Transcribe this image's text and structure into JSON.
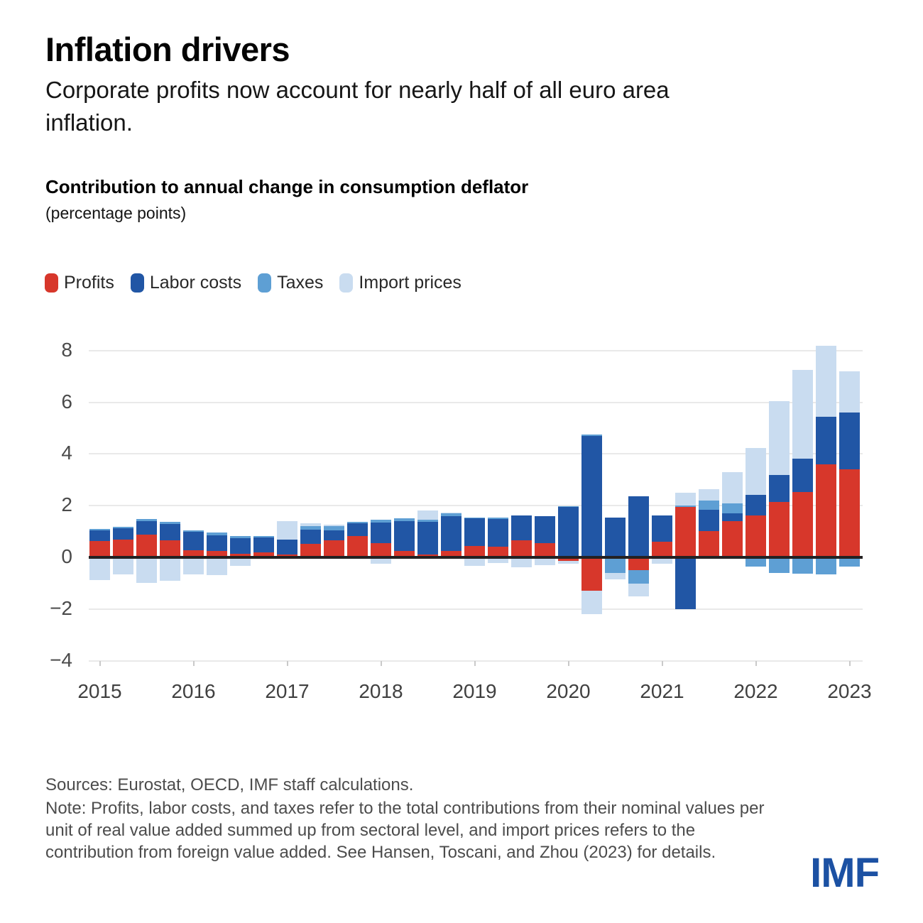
{
  "page": {
    "title": "Inflation drivers",
    "subtitle": "Corporate profits now account for nearly half of all euro area inflation."
  },
  "chart": {
    "heading": "Contribution to annual change in consumption deflator",
    "units": "(percentage points)"
  },
  "legend": {
    "items": [
      {
        "label": "Profits",
        "color": "#d7372b"
      },
      {
        "label": "Labor costs",
        "color": "#2156a5"
      },
      {
        "label": "Taxes",
        "color": "#5e9fd4"
      },
      {
        "label": "Import prices",
        "color": "#c9dcf0"
      }
    ]
  },
  "footer": {
    "sources": "Sources: Eurostat, OECD, IMF staff calculations.",
    "note": "Note: Profits, labor costs, and taxes refer to the total contributions from their nominal values per unit of real value added summed up from sectoral level, and import prices refers to the contribution from foreign value added. See Hansen, Toscani, and Zhou (2023) for details."
  },
  "logo": "IMF",
  "chart_data": {
    "type": "bar",
    "subtype": "stacked-bar-quarterly",
    "title": "Contribution to annual change in consumption deflator",
    "ylabel": "percentage points",
    "xlabel": "",
    "ylim": [
      -4,
      8.6
    ],
    "yticks": [
      8,
      6,
      4,
      2,
      0,
      -2,
      -4
    ],
    "grid": true,
    "legend_position": "top-left",
    "xtick_labels": [
      "2015",
      "2016",
      "2017",
      "2018",
      "2019",
      "2020",
      "2021",
      "2022",
      "2023"
    ],
    "categories": [
      "2015Q1",
      "2015Q2",
      "2015Q3",
      "2015Q4",
      "2016Q1",
      "2016Q2",
      "2016Q3",
      "2016Q4",
      "2017Q1",
      "2017Q2",
      "2017Q3",
      "2017Q4",
      "2018Q1",
      "2018Q2",
      "2018Q3",
      "2018Q4",
      "2019Q1",
      "2019Q2",
      "2019Q3",
      "2019Q4",
      "2020Q1",
      "2020Q2",
      "2020Q3",
      "2020Q4",
      "2021Q1",
      "2021Q2",
      "2021Q3",
      "2021Q4",
      "2022Q1",
      "2022Q2",
      "2022Q3",
      "2022Q4",
      "2023Q1"
    ],
    "series": [
      {
        "name": "Profits",
        "color": "#d7372b",
        "values": [
          0.62,
          0.68,
          0.87,
          0.66,
          0.27,
          0.24,
          0.13,
          0.2,
          0.1,
          0.52,
          0.67,
          0.82,
          0.56,
          0.25,
          0.1,
          0.24,
          0.43,
          0.4,
          0.67,
          0.54,
          -0.15,
          -1.3,
          0.05,
          -0.5,
          0.6,
          1.95,
          1.02,
          1.4,
          1.63,
          2.15,
          2.53,
          3.6,
          3.42
        ]
      },
      {
        "name": "Labor costs",
        "color": "#2156a5",
        "values": [
          0.42,
          0.44,
          0.53,
          0.64,
          0.72,
          0.62,
          0.62,
          0.56,
          0.6,
          0.55,
          0.37,
          0.49,
          0.79,
          1.16,
          1.28,
          1.34,
          1.1,
          1.09,
          0.94,
          1.04,
          1.95,
          4.7,
          1.5,
          2.35,
          1.02,
          -2.0,
          0.82,
          0.3,
          0.8,
          1.05,
          1.28,
          1.83,
          2.18
        ]
      },
      {
        "name": "Taxes",
        "color": "#5e9fd4",
        "values": [
          0.06,
          0.07,
          0.07,
          0.08,
          0.06,
          0.09,
          0.08,
          0.06,
          0.0,
          0.14,
          0.16,
          0.07,
          0.1,
          0.1,
          0.08,
          0.12,
          0.02,
          0.05,
          0.0,
          0.0,
          0.03,
          0.05,
          -0.6,
          -0.52,
          0.0,
          0.05,
          0.35,
          0.4,
          -0.35,
          -0.6,
          -0.62,
          -0.65,
          -0.35
        ]
      },
      {
        "name": "Import prices",
        "color": "#c9dcf0",
        "values": [
          -0.88,
          -0.65,
          -1.0,
          -0.9,
          -0.67,
          -0.68,
          -0.32,
          -0.06,
          0.7,
          0.1,
          0.07,
          0.0,
          -0.24,
          0.0,
          0.35,
          0.03,
          -0.32,
          -0.21,
          -0.38,
          -0.31,
          -0.1,
          -0.9,
          -0.24,
          -0.5,
          -0.25,
          0.5,
          0.45,
          1.2,
          1.8,
          2.85,
          3.45,
          2.75,
          1.6
        ]
      }
    ]
  }
}
